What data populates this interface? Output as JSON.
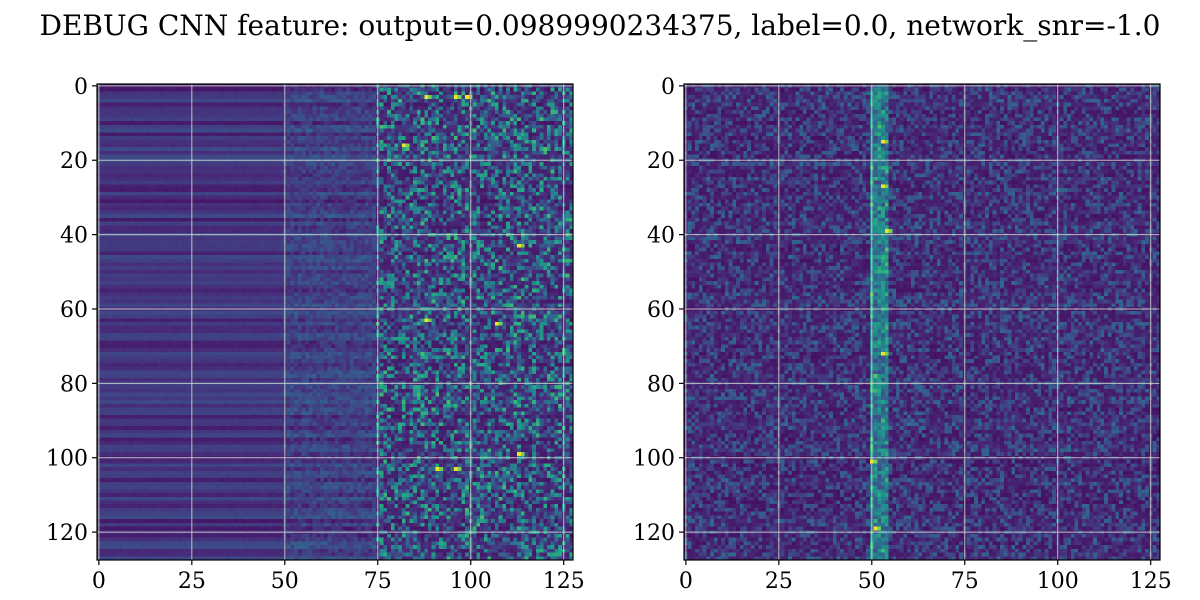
{
  "chart_data": {
    "title": "DEBUG CNN feature: output=0.0989990234375, label=0.0, network_snr=-1.0",
    "panels": [
      {
        "type": "heatmap",
        "colormap": "viridis",
        "shape": [
          128,
          128
        ],
        "xlim": [
          0,
          127
        ],
        "ylim": [
          127,
          0
        ],
        "x_ticks": [
          0,
          25,
          50,
          75,
          100,
          125
        ],
        "y_ticks": [
          0,
          20,
          40,
          60,
          80,
          100,
          120
        ],
        "x_tick_labels": [
          "0",
          "25",
          "50",
          "75",
          "100",
          "125"
        ],
        "y_tick_labels": [
          "0",
          "20",
          "40",
          "60",
          "80",
          "100",
          "120"
        ],
        "grid": true,
        "pattern": "low uniform row-striped band for x<50, mid band 50-75, bright speckled noise for x>75; bright rows near y=3, 16, 44, 63, 103",
        "hot_spots": [
          [
            88,
            3
          ],
          [
            96,
            3
          ],
          [
            99,
            3
          ],
          [
            82,
            16
          ],
          [
            113,
            43
          ],
          [
            88,
            63
          ],
          [
            107,
            64
          ],
          [
            91,
            103
          ],
          [
            96,
            103
          ],
          [
            113,
            99
          ]
        ]
      },
      {
        "type": "heatmap",
        "colormap": "viridis",
        "shape": [
          128,
          128
        ],
        "xlim": [
          0,
          127
        ],
        "ylim": [
          127,
          0
        ],
        "x_ticks": [
          0,
          25,
          50,
          75,
          100,
          125
        ],
        "y_ticks": [
          0,
          20,
          40,
          60,
          80,
          100,
          120
        ],
        "x_tick_labels": [
          "0",
          "25",
          "50",
          "75",
          "100",
          "125"
        ],
        "y_tick_labels": [
          "0",
          "20",
          "40",
          "60",
          "80",
          "100",
          "120"
        ],
        "grid": true,
        "pattern": "dark low-level noise everywhere with a bright vertical stripe at x~50-54, brightest near y=38-40",
        "hot_spots": [
          [
            53,
            15
          ],
          [
            53,
            27
          ],
          [
            54,
            39
          ],
          [
            53,
            72
          ],
          [
            51,
            119
          ],
          [
            50,
            101
          ]
        ]
      }
    ]
  }
}
